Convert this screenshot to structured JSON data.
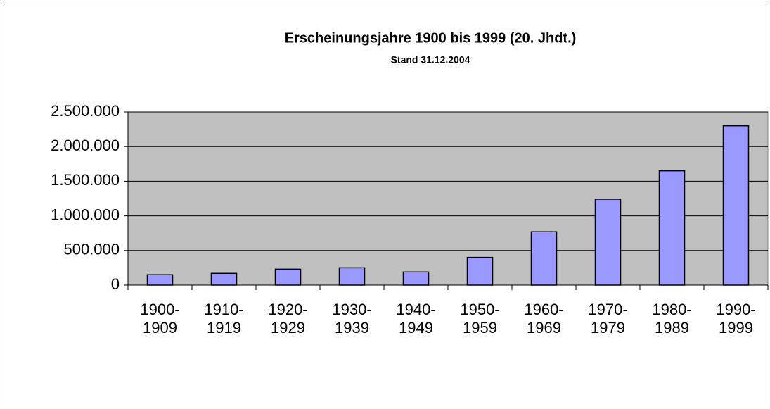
{
  "chart_data": {
    "type": "bar",
    "title": "Erscheinungsjahre 1900 bis 1999 (20. Jhdt.)",
    "subtitle": "Stand 31.12.2004",
    "categories": [
      "1900-1909",
      "1910-1919",
      "1920-1929",
      "1930-1939",
      "1940-1949",
      "1950-1959",
      "1960-1969",
      "1970-1979",
      "1980-1989",
      "1990-1999"
    ],
    "values": [
      150000,
      170000,
      230000,
      250000,
      190000,
      400000,
      770000,
      1240000,
      1650000,
      2300000
    ],
    "color": "#9999ff",
    "ylim": [
      0,
      2500000
    ],
    "yticks": [
      0,
      {
        "value": 500000,
        "label": "500.000"
      },
      {
        "value": 1000000,
        "label": "1.000.000"
      },
      {
        "value": 1500000,
        "label": "1.500.000"
      },
      {
        "value": 2000000,
        "label": "2.000.000"
      },
      {
        "value": 2500000,
        "label": "2.500.000"
      }
    ],
    "grid": true
  }
}
